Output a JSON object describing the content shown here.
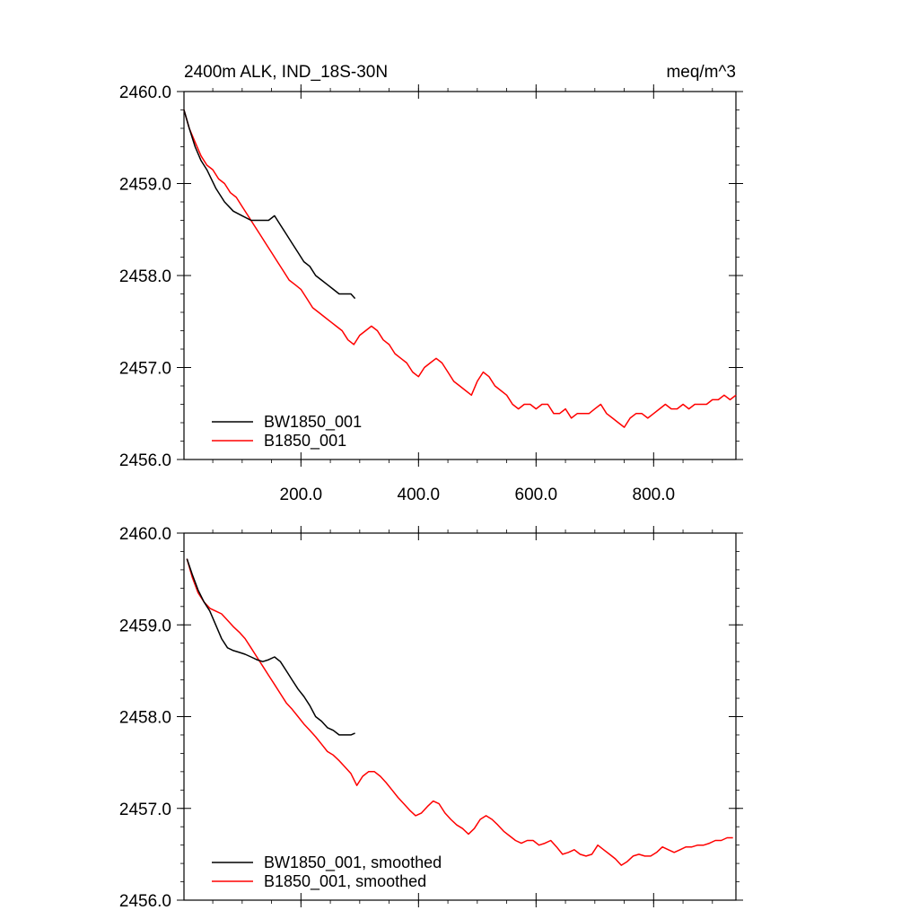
{
  "panels": [
    {
      "title_left": "2400m ALK, IND_18S-30N",
      "title_right": "meq/m^3",
      "legend": [
        "BW1850_001",
        "B1850_001"
      ]
    },
    {
      "title_left": "",
      "title_right": "",
      "legend": [
        "BW1850_001, smoothed",
        "B1850_001, smoothed"
      ]
    }
  ],
  "chart_data": [
    {
      "type": "line",
      "title": "2400m ALK, IND_18S-30N",
      "units": "meq/m^3",
      "xlim": [
        1,
        940
      ],
      "ylim": [
        2456.0,
        2460.0
      ],
      "x_ticks": [
        200.0,
        400.0,
        600.0,
        800.0
      ],
      "x_tick_labels": [
        "200.0",
        "400.0",
        "600.0",
        "800.0"
      ],
      "y_ticks": [
        2456.0,
        2457.0,
        2458.0,
        2459.0,
        2460.0
      ],
      "y_tick_labels": [
        "2456.0",
        "2457.0",
        "2458.0",
        "2459.0",
        "2460.0"
      ],
      "legend_position": "bottom-left",
      "series": [
        {
          "name": "BW1850_001",
          "color": "#000000",
          "x": [
            1,
            10,
            20,
            30,
            40,
            55,
            70,
            85,
            100,
            115,
            130,
            145,
            155,
            165,
            175,
            185,
            195,
            205,
            215,
            225,
            235,
            245,
            255,
            265,
            275,
            285,
            292
          ],
          "y": [
            2459.8,
            2459.6,
            2459.4,
            2459.25,
            2459.15,
            2458.95,
            2458.8,
            2458.7,
            2458.65,
            2458.6,
            2458.6,
            2458.6,
            2458.65,
            2458.55,
            2458.45,
            2458.35,
            2458.25,
            2458.15,
            2458.1,
            2458.0,
            2457.95,
            2457.9,
            2457.85,
            2457.8,
            2457.8,
            2457.8,
            2457.75
          ]
        },
        {
          "name": "B1850_001",
          "color": "#ff0000",
          "x": [
            1,
            10,
            20,
            30,
            40,
            50,
            60,
            70,
            80,
            90,
            100,
            110,
            120,
            130,
            140,
            150,
            160,
            170,
            180,
            190,
            200,
            210,
            220,
            230,
            240,
            250,
            260,
            270,
            280,
            290,
            300,
            310,
            320,
            330,
            340,
            350,
            360,
            370,
            380,
            390,
            400,
            410,
            420,
            430,
            440,
            450,
            460,
            470,
            480,
            490,
            500,
            510,
            520,
            530,
            540,
            550,
            560,
            570,
            580,
            590,
            600,
            610,
            620,
            630,
            640,
            650,
            660,
            670,
            680,
            690,
            700,
            710,
            720,
            730,
            740,
            750,
            760,
            770,
            780,
            790,
            800,
            810,
            820,
            830,
            840,
            850,
            860,
            870,
            880,
            890,
            900,
            910,
            920,
            930,
            940
          ],
          "y": [
            2459.8,
            2459.6,
            2459.45,
            2459.3,
            2459.2,
            2459.15,
            2459.05,
            2459.0,
            2458.9,
            2458.85,
            2458.75,
            2458.65,
            2458.55,
            2458.45,
            2458.35,
            2458.25,
            2458.15,
            2458.05,
            2457.95,
            2457.9,
            2457.85,
            2457.75,
            2457.65,
            2457.6,
            2457.55,
            2457.5,
            2457.45,
            2457.4,
            2457.3,
            2457.25,
            2457.35,
            2457.4,
            2457.45,
            2457.4,
            2457.3,
            2457.25,
            2457.15,
            2457.1,
            2457.05,
            2456.95,
            2456.9,
            2457.0,
            2457.05,
            2457.1,
            2457.05,
            2456.95,
            2456.85,
            2456.8,
            2456.75,
            2456.7,
            2456.85,
            2456.95,
            2456.9,
            2456.8,
            2456.75,
            2456.7,
            2456.6,
            2456.55,
            2456.6,
            2456.6,
            2456.55,
            2456.6,
            2456.6,
            2456.5,
            2456.5,
            2456.55,
            2456.45,
            2456.5,
            2456.5,
            2456.5,
            2456.55,
            2456.6,
            2456.5,
            2456.45,
            2456.4,
            2456.35,
            2456.45,
            2456.5,
            2456.5,
            2456.45,
            2456.5,
            2456.55,
            2456.6,
            2456.55,
            2456.55,
            2456.6,
            2456.55,
            2456.6,
            2456.6,
            2456.6,
            2456.65,
            2456.65,
            2456.7,
            2456.65,
            2456.7
          ]
        }
      ]
    },
    {
      "type": "line",
      "title": "",
      "xlim": [
        1,
        940
      ],
      "ylim": [
        2456.0,
        2460.0
      ],
      "x_ticks": [
        200.0,
        400.0,
        600.0,
        800.0
      ],
      "x_tick_labels": [],
      "y_ticks": [
        2456.0,
        2457.0,
        2458.0,
        2459.0,
        2460.0
      ],
      "y_tick_labels": [
        "2456.0",
        "2457.0",
        "2458.0",
        "2459.0",
        "2460.0"
      ],
      "legend_position": "bottom-left",
      "series": [
        {
          "name": "BW1850_001, smoothed",
          "color": "#000000",
          "x": [
            6,
            15,
            25,
            35,
            45,
            55,
            65,
            75,
            85,
            95,
            105,
            115,
            125,
            135,
            145,
            155,
            165,
            175,
            185,
            195,
            205,
            215,
            225,
            235,
            245,
            255,
            265,
            275,
            285,
            292
          ],
          "y": [
            2459.72,
            2459.55,
            2459.38,
            2459.25,
            2459.15,
            2459.0,
            2458.85,
            2458.75,
            2458.72,
            2458.7,
            2458.68,
            2458.65,
            2458.62,
            2458.6,
            2458.62,
            2458.65,
            2458.6,
            2458.5,
            2458.4,
            2458.3,
            2458.22,
            2458.12,
            2458.0,
            2457.95,
            2457.88,
            2457.85,
            2457.8,
            2457.8,
            2457.8,
            2457.82
          ]
        },
        {
          "name": "B1850_001, smoothed",
          "color": "#ff0000",
          "x": [
            6,
            15,
            25,
            35,
            45,
            55,
            65,
            75,
            85,
            95,
            105,
            115,
            125,
            135,
            145,
            155,
            165,
            175,
            185,
            195,
            205,
            215,
            225,
            235,
            245,
            255,
            265,
            275,
            285,
            295,
            305,
            315,
            325,
            335,
            345,
            355,
            365,
            375,
            385,
            395,
            405,
            415,
            425,
            435,
            445,
            455,
            465,
            475,
            485,
            495,
            505,
            515,
            525,
            535,
            545,
            555,
            565,
            575,
            585,
            595,
            605,
            615,
            625,
            635,
            645,
            655,
            665,
            675,
            685,
            695,
            705,
            715,
            725,
            735,
            745,
            755,
            765,
            775,
            785,
            795,
            805,
            815,
            825,
            835,
            845,
            855,
            865,
            875,
            885,
            895,
            905,
            915,
            925,
            935
          ],
          "y": [
            2459.72,
            2459.52,
            2459.35,
            2459.25,
            2459.18,
            2459.15,
            2459.12,
            2459.05,
            2458.98,
            2458.92,
            2458.85,
            2458.75,
            2458.65,
            2458.55,
            2458.45,
            2458.35,
            2458.25,
            2458.15,
            2458.08,
            2458.0,
            2457.92,
            2457.85,
            2457.78,
            2457.7,
            2457.62,
            2457.58,
            2457.52,
            2457.45,
            2457.38,
            2457.25,
            2457.35,
            2457.4,
            2457.4,
            2457.35,
            2457.28,
            2457.2,
            2457.12,
            2457.05,
            2456.98,
            2456.92,
            2456.95,
            2457.02,
            2457.08,
            2457.05,
            2456.95,
            2456.88,
            2456.82,
            2456.78,
            2456.72,
            2456.78,
            2456.88,
            2456.92,
            2456.88,
            2456.82,
            2456.75,
            2456.7,
            2456.65,
            2456.62,
            2456.65,
            2456.65,
            2456.6,
            2456.62,
            2456.65,
            2456.58,
            2456.5,
            2456.52,
            2456.55,
            2456.5,
            2456.48,
            2456.5,
            2456.6,
            2456.55,
            2456.5,
            2456.45,
            2456.38,
            2456.42,
            2456.48,
            2456.5,
            2456.48,
            2456.48,
            2456.52,
            2456.58,
            2456.55,
            2456.52,
            2456.55,
            2456.58,
            2456.58,
            2456.6,
            2456.6,
            2456.62,
            2456.65,
            2456.65,
            2456.68,
            2456.68
          ]
        }
      ]
    }
  ]
}
